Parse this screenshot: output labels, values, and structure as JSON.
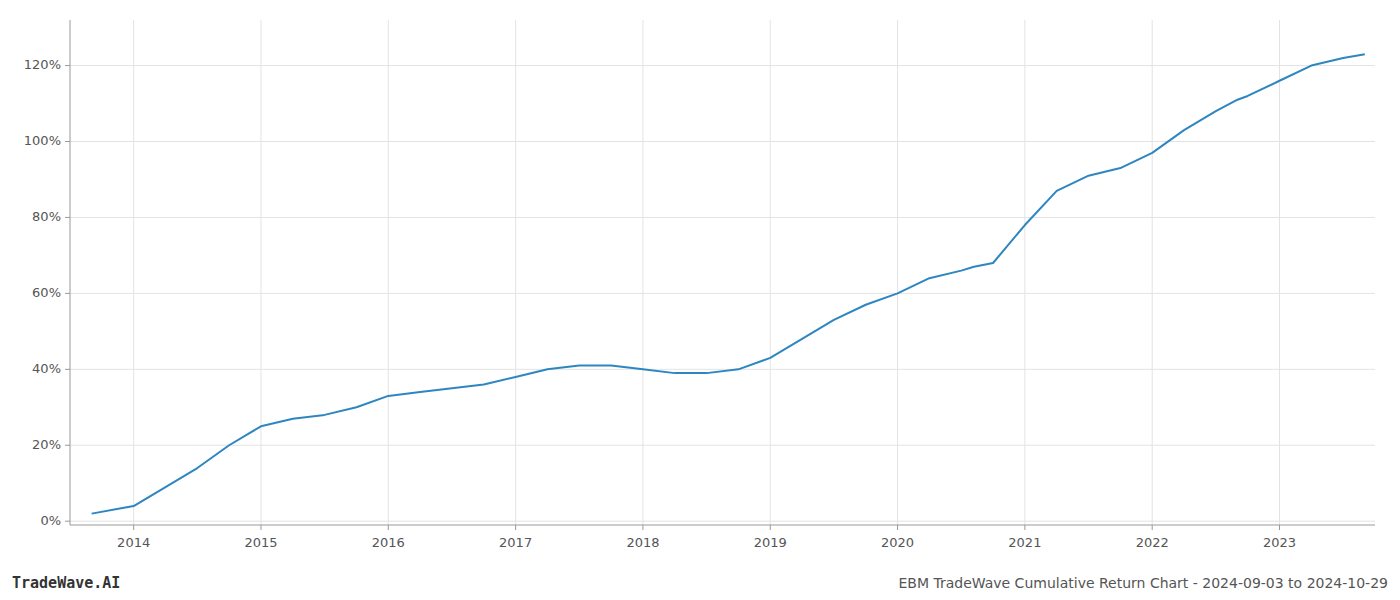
{
  "chart_data": {
    "type": "line",
    "title": "EBM TradeWave Cumulative Return Chart - 2024-09-03 to 2024-10-29",
    "annotations": [
      "TradeWave.AI"
    ],
    "color": "#2e86c1",
    "x": [
      2013.67,
      2014.0,
      2014.25,
      2014.5,
      2014.75,
      2015.0,
      2015.25,
      2015.5,
      2015.75,
      2016.0,
      2016.25,
      2016.5,
      2016.75,
      2017.0,
      2017.25,
      2017.5,
      2017.67,
      2017.75,
      2018.0,
      2018.25,
      2018.5,
      2018.75,
      2019.0,
      2019.25,
      2019.5,
      2019.75,
      2020.0,
      2020.25,
      2020.5,
      2020.6,
      2020.75,
      2021.0,
      2021.25,
      2021.5,
      2021.75,
      2022.0,
      2022.25,
      2022.5,
      2022.67,
      2022.75,
      2023.0,
      2023.25,
      2023.5,
      2023.67
    ],
    "values": [
      0.02,
      0.04,
      0.09,
      0.14,
      0.2,
      0.25,
      0.27,
      0.28,
      0.3,
      0.33,
      0.34,
      0.35,
      0.36,
      0.38,
      0.4,
      0.41,
      0.41,
      0.41,
      0.4,
      0.39,
      0.39,
      0.4,
      0.43,
      0.48,
      0.53,
      0.57,
      0.6,
      0.64,
      0.66,
      0.67,
      0.68,
      0.78,
      0.87,
      0.91,
      0.93,
      0.97,
      1.03,
      1.08,
      1.11,
      1.12,
      1.16,
      1.2,
      1.22,
      1.23
    ],
    "xlim": [
      2013.5,
      2023.75
    ],
    "ylim": [
      -0.01,
      1.32
    ],
    "xticks": [
      2014,
      2015,
      2016,
      2017,
      2018,
      2019,
      2020,
      2021,
      2022,
      2023
    ],
    "yticks": [
      {
        "value": 0.0,
        "label": "0%"
      },
      {
        "value": 0.2,
        "label": "20%"
      },
      {
        "value": 0.4,
        "label": "40%"
      },
      {
        "value": 0.6,
        "label": "60%"
      },
      {
        "value": 0.8,
        "label": "80%"
      },
      {
        "value": 1.0,
        "label": "100%"
      },
      {
        "value": 1.2,
        "label": "120%"
      }
    ],
    "grid": true
  }
}
